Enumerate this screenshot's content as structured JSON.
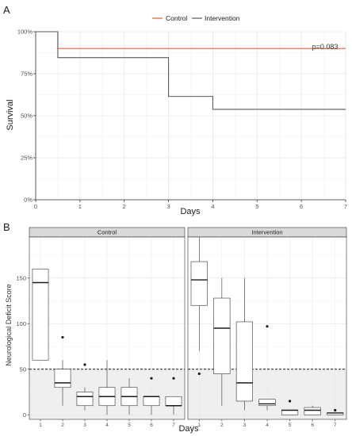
{
  "chart_data": [
    {
      "type": "line",
      "panel_label": "A",
      "title": "",
      "xlabel": "Days",
      "ylabel": "Survival",
      "xlim": [
        0,
        7
      ],
      "ylim": [
        0,
        1
      ],
      "x_ticks": [
        "0",
        "1",
        "2",
        "3",
        "4",
        "5",
        "6",
        "7"
      ],
      "y_ticks": [
        "0%",
        "25%",
        "50%",
        "75%",
        "100%"
      ],
      "grid": true,
      "legend_position": "top",
      "annotation": "p=0.083",
      "series": [
        {
          "name": "Control",
          "color": "#e8603c",
          "step": true,
          "x": [
            0,
            0.5,
            0.5,
            7
          ],
          "y": [
            1.0,
            1.0,
            0.9,
            0.9
          ]
        },
        {
          "name": "Intervention",
          "color": "#5a5a5a",
          "step": true,
          "x": [
            0,
            0.5,
            0.5,
            3,
            3,
            4,
            4,
            7
          ],
          "y": [
            1.0,
            1.0,
            0.846,
            0.846,
            0.615,
            0.615,
            0.538,
            0.538
          ]
        }
      ]
    },
    {
      "type": "box",
      "panel_label": "B",
      "xlabel": "Days",
      "ylabel": "Neurological Deficit Score",
      "ylim": [
        -5,
        195
      ],
      "y_ticks": [
        0,
        50,
        100,
        150
      ],
      "reference_line": 50,
      "shaded_below": 50,
      "categories": [
        "1",
        "2",
        "3",
        "4",
        "5",
        "6",
        "7"
      ],
      "facets": [
        {
          "name": "Control",
          "boxes": [
            {
              "day": "1",
              "min": 60,
              "q1": 60,
              "median": 145,
              "q3": 160,
              "max": 160,
              "outliers": []
            },
            {
              "day": "2",
              "min": 10,
              "q1": 30,
              "median": 35,
              "q3": 50,
              "max": 60,
              "outliers": [
                85
              ]
            },
            {
              "day": "3",
              "min": 5,
              "q1": 10,
              "median": 20,
              "q3": 25,
              "max": 30,
              "outliers": [
                55
              ]
            },
            {
              "day": "4",
              "min": 0,
              "q1": 10,
              "median": 20,
              "q3": 30,
              "max": 60,
              "outliers": []
            },
            {
              "day": "5",
              "min": 0,
              "q1": 10,
              "median": 20,
              "q3": 30,
              "max": 40,
              "outliers": []
            },
            {
              "day": "6",
              "min": 0,
              "q1": 10,
              "median": 20,
              "q3": 20,
              "max": 20,
              "outliers": [
                40
              ]
            },
            {
              "day": "7",
              "min": 0,
              "q1": 10,
              "median": 10,
              "q3": 20,
              "max": 20,
              "outliers": [
                40
              ]
            }
          ]
        },
        {
          "name": "Intervention",
          "boxes": [
            {
              "day": "1",
              "min": 70,
              "q1": 120,
              "median": 148,
              "q3": 168,
              "max": 195,
              "outliers": [
                45
              ]
            },
            {
              "day": "2",
              "min": 10,
              "q1": 45,
              "median": 95,
              "q3": 128,
              "max": 150,
              "outliers": []
            },
            {
              "day": "3",
              "min": 5,
              "q1": 15,
              "median": 35,
              "q3": 102,
              "max": 150,
              "outliers": []
            },
            {
              "day": "4",
              "min": 5,
              "q1": 10,
              "median": 12,
              "q3": 17,
              "max": 17,
              "outliers": [
                97
              ]
            },
            {
              "day": "5",
              "min": 0,
              "q1": 0,
              "median": 5,
              "q3": 5,
              "max": 5,
              "outliers": [
                15
              ]
            },
            {
              "day": "6",
              "min": 0,
              "q1": 0,
              "median": 5,
              "q3": 8,
              "max": 10,
              "outliers": []
            },
            {
              "day": "7",
              "min": 0,
              "q1": 0,
              "median": 2,
              "q3": 2,
              "max": 2,
              "outliers": [
                5
              ]
            }
          ]
        }
      ]
    }
  ]
}
